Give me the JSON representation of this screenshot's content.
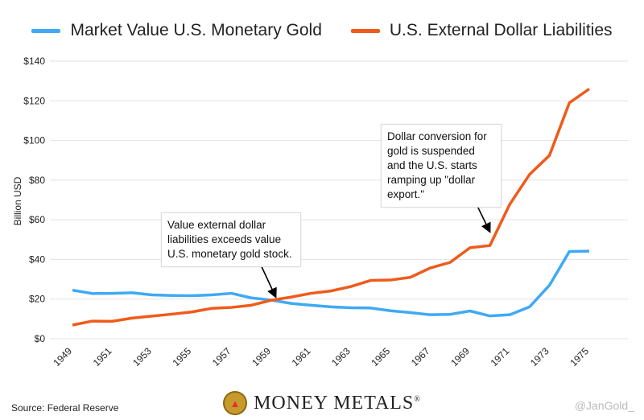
{
  "chart_data": {
    "type": "line",
    "title": "",
    "xlabel": "",
    "ylabel": "Billion USD",
    "ylim": [
      0,
      140
    ],
    "yticks": [
      "$0",
      "$20",
      "$40",
      "$60",
      "$80",
      "$100",
      "$120",
      "$140"
    ],
    "ytick_values": [
      0,
      20,
      40,
      60,
      80,
      100,
      120,
      140
    ],
    "x": [
      1949,
      1950,
      1951,
      1952,
      1953,
      1954,
      1955,
      1956,
      1957,
      1958,
      1959,
      1960,
      1961,
      1962,
      1963,
      1964,
      1965,
      1966,
      1967,
      1968,
      1969,
      1970,
      1971,
      1972,
      1973,
      1974,
      1975
    ],
    "xticks": [
      "1949",
      "1951",
      "1953",
      "1955",
      "1957",
      "1959",
      "1961",
      "1963",
      "1965",
      "1967",
      "1969",
      "1971",
      "1973",
      "1975"
    ],
    "grid": true,
    "legend_position": "top-center",
    "series": [
      {
        "name": "Market Value U.S. Monetary Gold",
        "color": "#3fa9f5",
        "values": [
          24.5,
          22.8,
          22.9,
          23.2,
          22.1,
          21.8,
          21.7,
          22.1,
          22.9,
          20.6,
          19.5,
          17.8,
          16.9,
          16.1,
          15.6,
          15.5,
          14.1,
          13.2,
          12.1,
          12.3,
          14.0,
          11.5,
          12.1,
          16.1,
          27.0,
          44.0,
          44.2
        ]
      },
      {
        "name": "U.S. External Dollar Liabilities",
        "color": "#f05a1a",
        "values": [
          6.9,
          8.9,
          8.8,
          10.4,
          11.4,
          12.4,
          13.5,
          15.3,
          15.8,
          16.9,
          19.4,
          21.0,
          22.9,
          24.1,
          26.3,
          29.4,
          29.6,
          31.0,
          35.7,
          38.5,
          45.9,
          47.0,
          67.8,
          82.9,
          92.5,
          119.0,
          126.0
        ]
      }
    ],
    "annotations": [
      {
        "text": "Value external dollar liabilities exceeds value U.S. monetary gold stock.",
        "x": 1959.5,
        "y": 20
      },
      {
        "text": "Dollar conversion for gold is suspended and the U.S. starts ramping up \"dollar export.\"",
        "x": 1970,
        "y": 47
      }
    ]
  },
  "footer": {
    "source": "Source: Federal Reserve",
    "brand": "Money Metals",
    "registered": "®",
    "handle": "@JanGold_"
  }
}
